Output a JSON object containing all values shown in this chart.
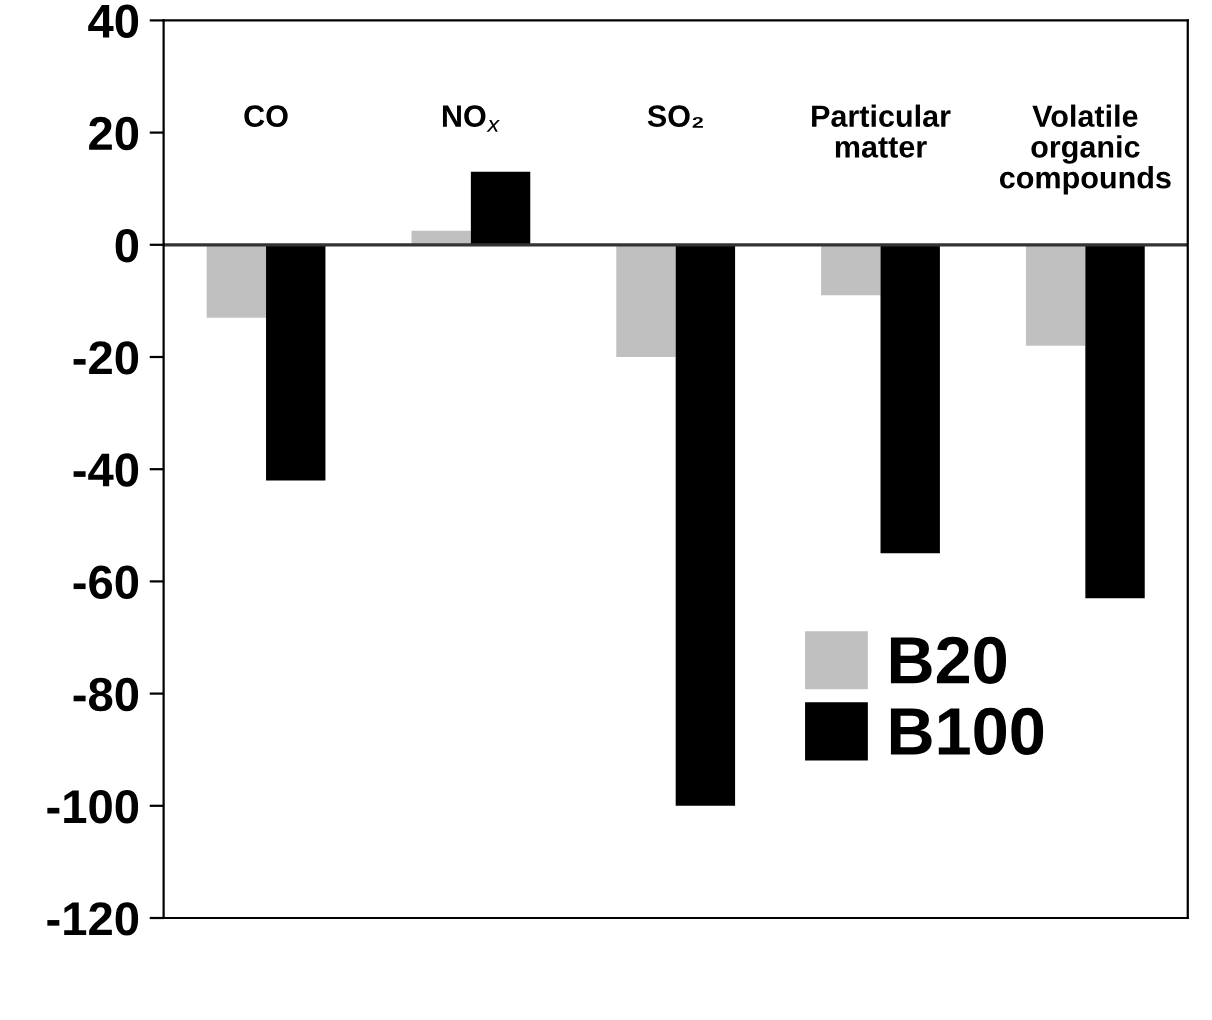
{
  "chart_data": {
    "type": "bar",
    "categories": [
      "CO",
      "NO$_{x}$",
      "SO₂",
      "Particular\nmatter",
      "Volatile\norganic\ncompounds"
    ],
    "series": [
      {
        "name": "B20",
        "color": "#c0c0c0",
        "values": [
          -13,
          2.5,
          -20,
          -9,
          -18
        ]
      },
      {
        "name": "B100",
        "color": "#000000",
        "values": [
          -42,
          13,
          -100,
          -55,
          -63
        ]
      }
    ],
    "ylim": [
      -120,
      40
    ],
    "yticks": [
      40,
      20,
      0,
      -20,
      -40,
      -60,
      -80,
      -100,
      -120
    ],
    "grid": false,
    "legend": "bottom right"
  }
}
